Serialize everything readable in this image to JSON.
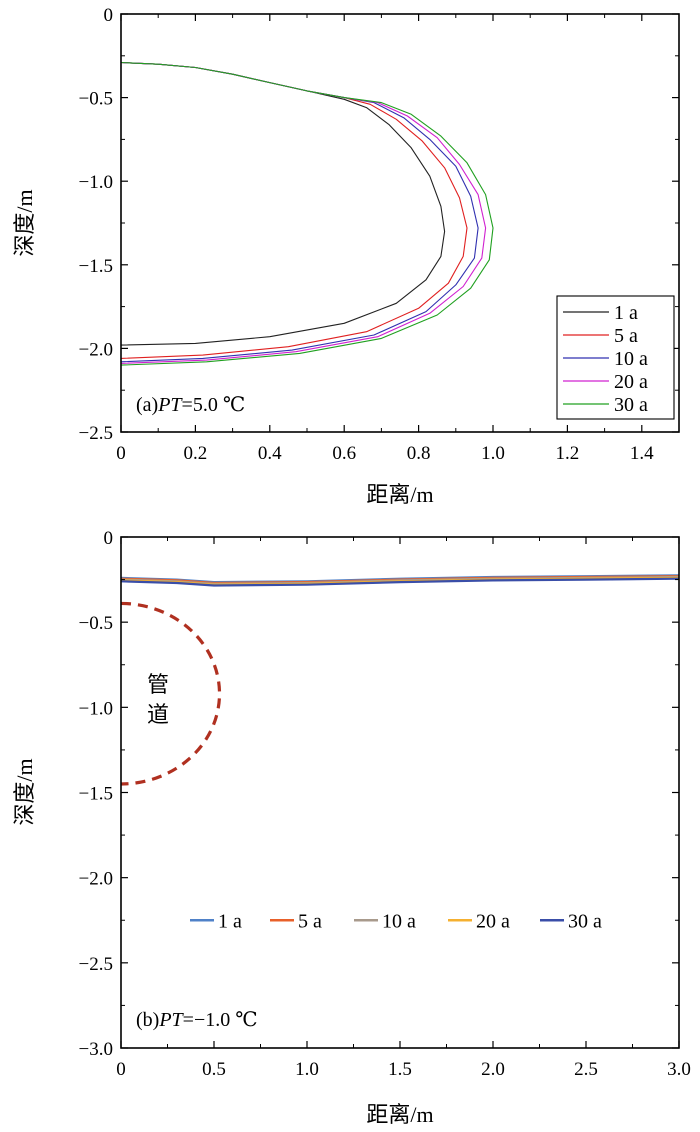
{
  "chart_data": [
    {
      "type": "line",
      "xlabel": "距离/m",
      "ylabel": "深度/m",
      "xlim": [
        0,
        1.5
      ],
      "ylim": [
        -2.5,
        0
      ],
      "xticks": [
        0,
        0.2,
        0.4,
        0.6,
        0.8,
        1.0,
        1.2,
        1.4
      ],
      "xtick_labels": [
        "0",
        "0.2",
        "0.4",
        "0.6",
        "0.8",
        "1.0",
        "1.2",
        "1.4"
      ],
      "yticks": [
        0,
        -0.5,
        -1.0,
        -1.5,
        -2.0,
        -2.5
      ],
      "ytick_labels": [
        "0",
        "−0.5",
        "−1.0",
        "−1.5",
        "−2.0",
        "−2.5"
      ],
      "annotation": {
        "prefix": "(a)",
        "italic": "PT",
        "suffix": "=5.0 ℃"
      },
      "legend": {
        "placement": "bottom-right",
        "style": "box"
      },
      "series": [
        {
          "name": "1 a",
          "color": "#222222",
          "points": [
            [
              0,
              -0.29
            ],
            [
              0.1,
              -0.3
            ],
            [
              0.2,
              -0.32
            ],
            [
              0.3,
              -0.36
            ],
            [
              0.4,
              -0.41
            ],
            [
              0.5,
              -0.46
            ],
            [
              0.6,
              -0.51
            ],
            [
              0.66,
              -0.56
            ],
            [
              0.72,
              -0.66
            ],
            [
              0.78,
              -0.8
            ],
            [
              0.83,
              -0.97
            ],
            [
              0.86,
              -1.15
            ],
            [
              0.87,
              -1.3
            ],
            [
              0.86,
              -1.45
            ],
            [
              0.82,
              -1.59
            ],
            [
              0.74,
              -1.73
            ],
            [
              0.6,
              -1.85
            ],
            [
              0.4,
              -1.93
            ],
            [
              0.2,
              -1.97
            ],
            [
              0,
              -1.98
            ]
          ]
        },
        {
          "name": "5 a",
          "color": "#e02020",
          "points": [
            [
              0,
              -0.29
            ],
            [
              0.1,
              -0.3
            ],
            [
              0.2,
              -0.32
            ],
            [
              0.3,
              -0.36
            ],
            [
              0.4,
              -0.41
            ],
            [
              0.5,
              -0.46
            ],
            [
              0.6,
              -0.5
            ],
            [
              0.67,
              -0.54
            ],
            [
              0.74,
              -0.63
            ],
            [
              0.81,
              -0.76
            ],
            [
              0.87,
              -0.92
            ],
            [
              0.91,
              -1.1
            ],
            [
              0.93,
              -1.28
            ],
            [
              0.92,
              -1.45
            ],
            [
              0.88,
              -1.61
            ],
            [
              0.8,
              -1.76
            ],
            [
              0.66,
              -1.9
            ],
            [
              0.45,
              -1.99
            ],
            [
              0.22,
              -2.04
            ],
            [
              0,
              -2.06
            ]
          ]
        },
        {
          "name": "10 a",
          "color": "#3030b0",
          "points": [
            [
              0,
              -0.29
            ],
            [
              0.1,
              -0.3
            ],
            [
              0.2,
              -0.32
            ],
            [
              0.3,
              -0.36
            ],
            [
              0.4,
              -0.41
            ],
            [
              0.5,
              -0.46
            ],
            [
              0.6,
              -0.5
            ],
            [
              0.68,
              -0.53
            ],
            [
              0.76,
              -0.62
            ],
            [
              0.83,
              -0.75
            ],
            [
              0.9,
              -0.91
            ],
            [
              0.94,
              -1.09
            ],
            [
              0.96,
              -1.28
            ],
            [
              0.95,
              -1.46
            ],
            [
              0.9,
              -1.62
            ],
            [
              0.82,
              -1.78
            ],
            [
              0.68,
              -1.92
            ],
            [
              0.46,
              -2.01
            ],
            [
              0.22,
              -2.06
            ],
            [
              0,
              -2.08
            ]
          ]
        },
        {
          "name": "20 a",
          "color": "#d020d0",
          "points": [
            [
              0,
              -0.29
            ],
            [
              0.1,
              -0.3
            ],
            [
              0.2,
              -0.32
            ],
            [
              0.3,
              -0.36
            ],
            [
              0.4,
              -0.41
            ],
            [
              0.5,
              -0.46
            ],
            [
              0.6,
              -0.5
            ],
            [
              0.69,
              -0.53
            ],
            [
              0.77,
              -0.61
            ],
            [
              0.85,
              -0.74
            ],
            [
              0.91,
              -0.9
            ],
            [
              0.96,
              -1.08
            ],
            [
              0.98,
              -1.28
            ],
            [
              0.97,
              -1.46
            ],
            [
              0.92,
              -1.63
            ],
            [
              0.83,
              -1.79
            ],
            [
              0.69,
              -1.93
            ],
            [
              0.47,
              -2.02
            ],
            [
              0.23,
              -2.07
            ],
            [
              0,
              -2.09
            ]
          ]
        },
        {
          "name": "30 a",
          "color": "#20a020",
          "points": [
            [
              0,
              -0.29
            ],
            [
              0.1,
              -0.3
            ],
            [
              0.2,
              -0.32
            ],
            [
              0.3,
              -0.36
            ],
            [
              0.4,
              -0.41
            ],
            [
              0.5,
              -0.46
            ],
            [
              0.6,
              -0.5
            ],
            [
              0.7,
              -0.53
            ],
            [
              0.78,
              -0.6
            ],
            [
              0.86,
              -0.73
            ],
            [
              0.93,
              -0.89
            ],
            [
              0.98,
              -1.08
            ],
            [
              1.0,
              -1.28
            ],
            [
              0.99,
              -1.47
            ],
            [
              0.94,
              -1.64
            ],
            [
              0.85,
              -1.8
            ],
            [
              0.7,
              -1.94
            ],
            [
              0.48,
              -2.03
            ],
            [
              0.23,
              -2.08
            ],
            [
              0,
              -2.1
            ]
          ]
        }
      ]
    },
    {
      "type": "line",
      "xlabel": "距离/m",
      "ylabel": "深度/m",
      "xlim": [
        0,
        3.0
      ],
      "ylim": [
        -3.0,
        0
      ],
      "xticks": [
        0,
        0.5,
        1.0,
        1.5,
        2.0,
        2.5,
        3.0
      ],
      "xtick_labels": [
        "0",
        "0.5",
        "1.0",
        "1.5",
        "2.0",
        "2.5",
        "3.0"
      ],
      "yticks": [
        0,
        -0.5,
        -1.0,
        -1.5,
        -2.0,
        -2.5,
        -3.0
      ],
      "ytick_labels": [
        "0",
        "−0.5",
        "−1.0",
        "−1.5",
        "−2.0",
        "−2.5",
        "−3.0"
      ],
      "annotation": {
        "prefix": "(b)",
        "italic": "PT",
        "suffix": "=−1.0 ℃"
      },
      "pipe_label": [
        "管",
        "道"
      ],
      "pipe_outline": {
        "center": [
          0,
          -0.92
        ],
        "radius": 0.53,
        "color": "#b03020"
      },
      "legend": {
        "placement": "center-horizontal",
        "style": "inline"
      },
      "series": [
        {
          "name": "1 a",
          "color": "#4f81c8",
          "points": [
            [
              0,
              -0.24
            ],
            [
              0.3,
              -0.25
            ],
            [
              0.5,
              -0.265
            ],
            [
              1.0,
              -0.26
            ],
            [
              1.5,
              -0.245
            ],
            [
              2.0,
              -0.235
            ],
            [
              2.5,
              -0.23
            ],
            [
              3.0,
              -0.225
            ]
          ]
        },
        {
          "name": "5 a",
          "color": "#e8602a",
          "points": [
            [
              0,
              -0.245
            ],
            [
              0.3,
              -0.255
            ],
            [
              0.5,
              -0.27
            ],
            [
              1.0,
              -0.265
            ],
            [
              1.5,
              -0.25
            ],
            [
              2.0,
              -0.24
            ],
            [
              2.5,
              -0.235
            ],
            [
              3.0,
              -0.23
            ]
          ]
        },
        {
          "name": "10 a",
          "color": "#a89a8c",
          "points": [
            [
              0,
              -0.25
            ],
            [
              0.3,
              -0.26
            ],
            [
              0.5,
              -0.275
            ],
            [
              1.0,
              -0.27
            ],
            [
              1.5,
              -0.255
            ],
            [
              2.0,
              -0.245
            ],
            [
              2.5,
              -0.24
            ],
            [
              3.0,
              -0.235
            ]
          ]
        },
        {
          "name": "20 a",
          "color": "#f5b030",
          "points": [
            [
              0,
              -0.255
            ],
            [
              0.3,
              -0.265
            ],
            [
              0.5,
              -0.28
            ],
            [
              1.0,
              -0.275
            ],
            [
              1.5,
              -0.26
            ],
            [
              2.0,
              -0.25
            ],
            [
              2.5,
              -0.245
            ],
            [
              3.0,
              -0.24
            ]
          ]
        },
        {
          "name": "30 a",
          "color": "#3a4ea8",
          "points": [
            [
              0,
              -0.26
            ],
            [
              0.3,
              -0.27
            ],
            [
              0.5,
              -0.285
            ],
            [
              1.0,
              -0.28
            ],
            [
              1.5,
              -0.265
            ],
            [
              2.0,
              -0.255
            ],
            [
              2.5,
              -0.25
            ],
            [
              3.0,
              -0.245
            ]
          ]
        }
      ]
    }
  ]
}
